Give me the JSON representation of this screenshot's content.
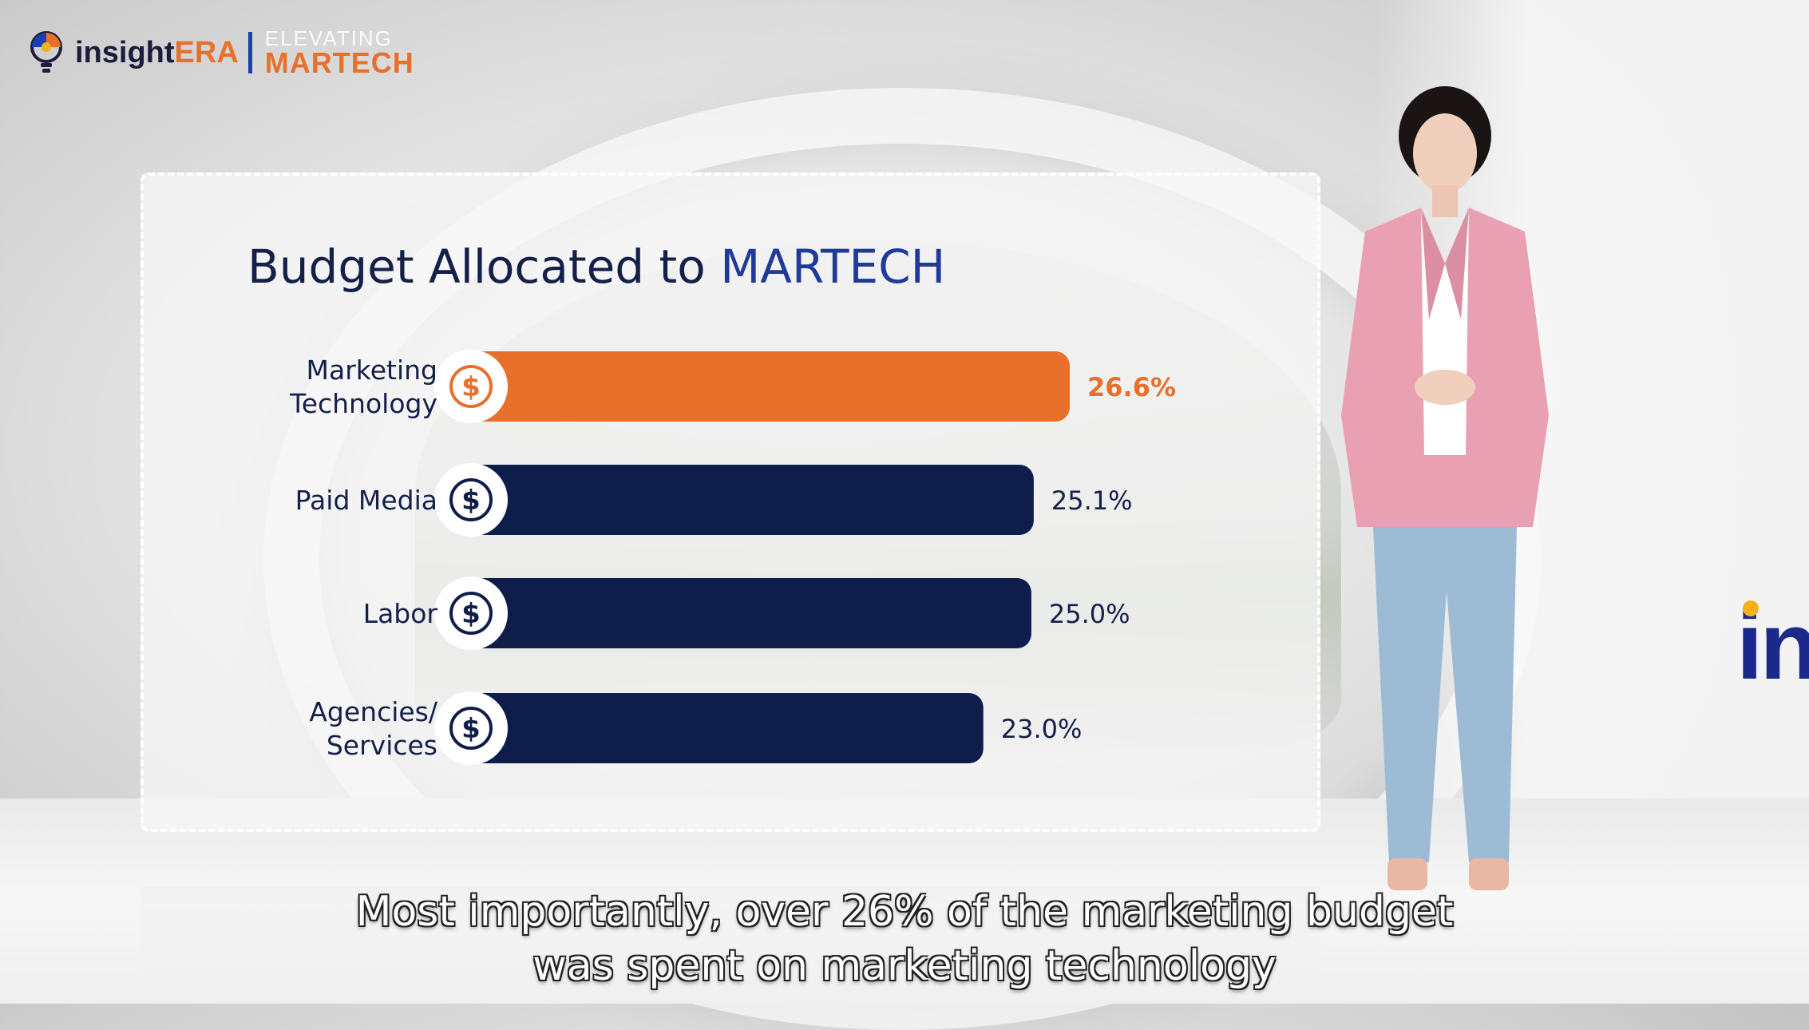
{
  "brand": {
    "name_a": "insight",
    "name_b": "ERA",
    "tagline_top": "ELEVATING",
    "tagline_bottom": "MARTECH",
    "wall_logo": "in",
    "colors": {
      "navy": "#0f1d4a",
      "orange": "#e8702a",
      "title_accent": "#1f3a9a"
    }
  },
  "chart_data": {
    "type": "bar",
    "orientation": "horizontal",
    "title": "Budget Allocated to MARTECH",
    "title_parts": {
      "prefix": "Budget Allocated to",
      "highlight": "MARTECH"
    },
    "categories": [
      "Marketing Technology",
      "Paid Media",
      "Labor",
      "Agencies/ Services"
    ],
    "category_lines": [
      [
        "Marketing",
        "Technology"
      ],
      [
        "Paid Media"
      ],
      [
        "Labor"
      ],
      [
        "Agencies/",
        "Services"
      ]
    ],
    "values": [
      26.6,
      25.1,
      25.0,
      23.0
    ],
    "value_labels": [
      "26.6%",
      "25.1%",
      "25.0%",
      "23.0%"
    ],
    "highlight_index": 0,
    "bar_icon": "dollar-circle-icon",
    "grid": false,
    "legend": "none"
  },
  "subtitles": {
    "line1": "Most importantly, over 26% of the marketing budget",
    "line2": "was spent on marketing technology"
  }
}
